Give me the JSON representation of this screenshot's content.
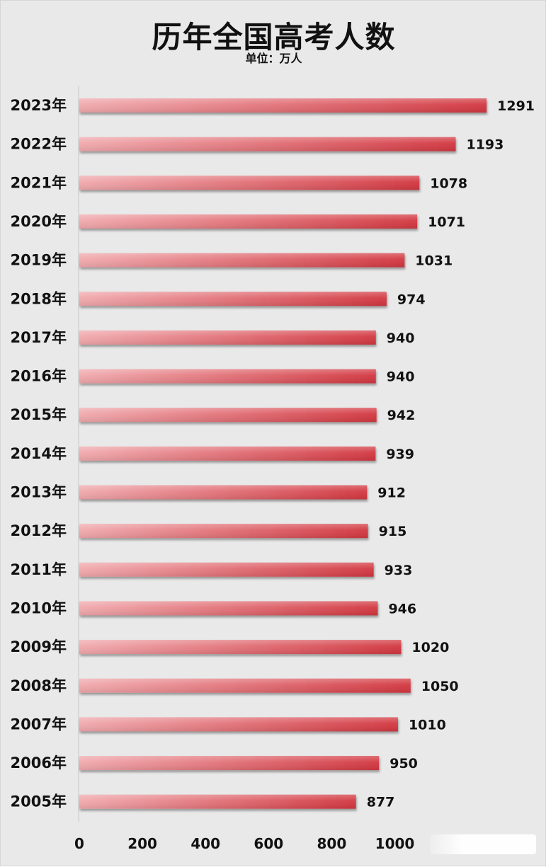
{
  "chart_data": {
    "type": "bar",
    "orientation": "horizontal",
    "title": "历年全国高考人数",
    "subtitle": "单位：万人",
    "categories": [
      "2023年",
      "2022年",
      "2021年",
      "2020年",
      "2019年",
      "2018年",
      "2017年",
      "2016年",
      "2015年",
      "2014年",
      "2013年",
      "2012年",
      "2011年",
      "2010年",
      "2009年",
      "2008年",
      "2007年",
      "2006年",
      "2005年"
    ],
    "values": [
      1291,
      1193,
      1078,
      1071,
      1031,
      974,
      940,
      940,
      942,
      939,
      912,
      915,
      933,
      946,
      1020,
      1050,
      1010,
      950,
      877
    ],
    "xticks": [
      "0",
      "200",
      "400",
      "600",
      "800",
      "1000"
    ],
    "xlim": [
      0,
      1400
    ],
    "grid": false,
    "legend": "none",
    "colors": {
      "bar_start": "#f0a9ad",
      "bar_end": "#d2363f",
      "background": "#e9e9e9",
      "text": "#111111"
    }
  }
}
